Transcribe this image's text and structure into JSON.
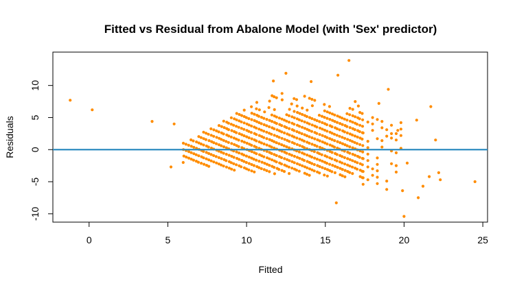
{
  "chart_data": {
    "type": "scatter",
    "title": "Fitted vs Residual from Abalone Model (with 'Sex' predictor)",
    "xlabel": "Fitted",
    "ylabel": "Residuals",
    "xlim": [
      -2.3,
      25.3
    ],
    "ylim": [
      -11.3,
      15.2
    ],
    "x_ticks": [
      0,
      5,
      10,
      15,
      20,
      25
    ],
    "y_ticks": [
      -10,
      -5,
      0,
      5,
      10
    ],
    "grid": false,
    "legend": "none",
    "reference_line": {
      "y": 0,
      "color": "#2E8BC0"
    },
    "point_color": "#FF8C00",
    "outliers": [
      {
        "x": -1.2,
        "y": 7.7
      },
      {
        "x": 0.2,
        "y": 6.2
      },
      {
        "x": 4.0,
        "y": 4.4
      },
      {
        "x": 5.4,
        "y": 4.0
      },
      {
        "x": 5.2,
        "y": -2.7
      },
      {
        "x": 24.5,
        "y": -5.0
      },
      {
        "x": 16.5,
        "y": 13.9
      },
      {
        "x": 15.8,
        "y": 11.6
      },
      {
        "x": 12.5,
        "y": 11.9
      },
      {
        "x": 11.7,
        "y": 10.7
      },
      {
        "x": 14.1,
        "y": 10.6
      },
      {
        "x": 19.0,
        "y": 9.4
      },
      {
        "x": 21.7,
        "y": 6.7
      },
      {
        "x": 22.0,
        "y": 1.5
      },
      {
        "x": 20.8,
        "y": 4.6
      },
      {
        "x": 20.0,
        "y": -10.4
      },
      {
        "x": 15.7,
        "y": -8.3
      },
      {
        "x": 20.9,
        "y": -7.5
      },
      {
        "x": 21.2,
        "y": -5.7
      },
      {
        "x": 21.6,
        "y": -4.2
      },
      {
        "x": 22.2,
        "y": -3.6
      },
      {
        "x": 22.3,
        "y": -4.7
      },
      {
        "x": 19.9,
        "y": -6.4
      },
      {
        "x": 18.9,
        "y": -6.2
      },
      {
        "x": 20.2,
        "y": -2.1
      },
      {
        "x": 19.2,
        "y": 2.5
      },
      {
        "x": 19.6,
        "y": 3.0
      },
      {
        "x": 18.4,
        "y": 7.2
      },
      {
        "x": 16.9,
        "y": 7.5
      },
      {
        "x": 17.1,
        "y": 6.8
      }
    ]
  }
}
